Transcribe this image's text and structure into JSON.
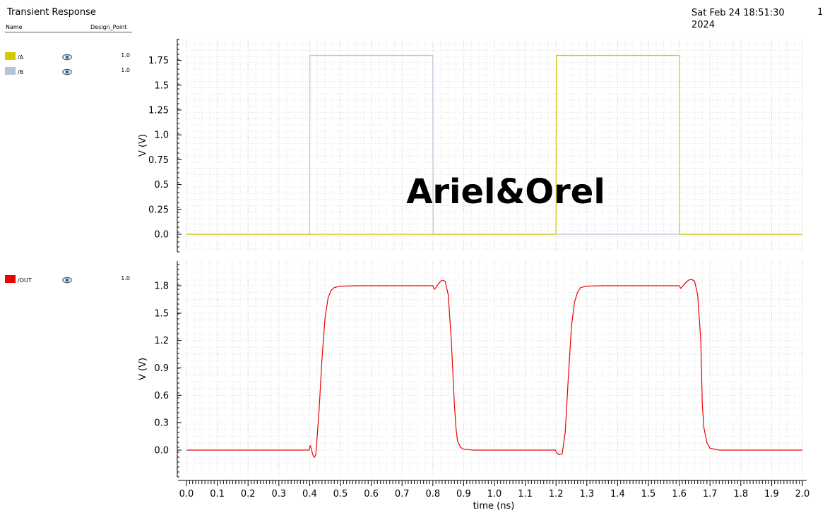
{
  "window": {
    "title": "Transient Response",
    "date_line1": "Sat Feb 24 18:51:30",
    "date_line2": "2024",
    "page_number": "1"
  },
  "legend_header": {
    "name": "Name",
    "design_point": "Design_Point"
  },
  "legend": {
    "top": [
      {
        "name": "/A",
        "color": "#d4c800",
        "design_point": "1.0",
        "icon": "eye-icon"
      },
      {
        "name": "/B",
        "color": "#b4c4dc",
        "design_point": "1.0",
        "icon": "eye-icon"
      }
    ],
    "bottom": [
      {
        "name": "/OUT",
        "color": "#ee0000",
        "design_point": "1.0",
        "icon": "eye-icon"
      }
    ]
  },
  "watermark": "Ariel&Orel",
  "chart_data": [
    {
      "type": "line",
      "ylabel": "V (V)",
      "xlim": [
        0.0,
        2.0
      ],
      "ylim": [
        -0.18,
        1.95
      ],
      "yticks": [
        "0.0",
        "0.25",
        "0.5",
        "0.75",
        "1.0",
        "1.25",
        "1.5",
        "1.75"
      ],
      "grid": true,
      "series": [
        {
          "name": "/B",
          "color": "#b4c4dc",
          "x": [
            0.0,
            0.4,
            0.401,
            0.8,
            0.801,
            2.0
          ],
          "y": [
            0.0,
            0.0,
            1.8,
            1.8,
            0.0,
            0.0
          ]
        },
        {
          "name": "/A",
          "color": "#d4c800",
          "x": [
            0.0,
            1.2,
            1.201,
            1.6,
            1.601,
            2.0
          ],
          "y": [
            0.0,
            0.0,
            1.8,
            1.8,
            0.0,
            0.0
          ]
        }
      ]
    },
    {
      "type": "line",
      "ylabel": "V (V)",
      "xlabel": "time (ns)",
      "xlim": [
        0.0,
        2.0
      ],
      "ylim": [
        -0.18,
        1.95
      ],
      "yticks": [
        "0.0",
        "0.3",
        "0.6",
        "0.9",
        "1.2",
        "1.5",
        "1.8"
      ],
      "xticks": [
        "0.0",
        "0.1",
        "0.2",
        "0.3",
        "0.4",
        "0.5",
        "0.6",
        "0.7",
        "0.8",
        "0.9",
        "1.0",
        "1.1",
        "1.2",
        "1.3",
        "1.4",
        "1.5",
        "1.6",
        "1.7",
        "1.8",
        "1.9",
        "2.0"
      ],
      "grid": true,
      "series": [
        {
          "name": "/OUT",
          "color": "#ee0000",
          "x": [
            0.0,
            0.398,
            0.402,
            0.405,
            0.41,
            0.415,
            0.42,
            0.43,
            0.44,
            0.45,
            0.46,
            0.47,
            0.48,
            0.5,
            0.55,
            0.7,
            0.8,
            0.805,
            0.81,
            0.82,
            0.83,
            0.84,
            0.85,
            0.86,
            0.87,
            0.875,
            0.88,
            0.89,
            0.9,
            0.93,
            1.0,
            1.198,
            1.202,
            1.21,
            1.22,
            1.23,
            1.24,
            1.25,
            1.26,
            1.27,
            1.28,
            1.3,
            1.35,
            1.5,
            1.6,
            1.605,
            1.61,
            1.62,
            1.63,
            1.64,
            1.65,
            1.66,
            1.67,
            1.675,
            1.68,
            1.69,
            1.7,
            1.73,
            2.0
          ],
          "y": [
            0.0,
            0.0,
            0.05,
            0.02,
            -0.05,
            -0.08,
            -0.05,
            0.4,
            1.0,
            1.45,
            1.67,
            1.75,
            1.78,
            1.795,
            1.8,
            1.8,
            1.8,
            1.76,
            1.78,
            1.83,
            1.86,
            1.85,
            1.7,
            1.2,
            0.5,
            0.25,
            0.1,
            0.03,
            0.01,
            0.0,
            0.0,
            0.0,
            -0.03,
            -0.05,
            -0.04,
            0.2,
            0.8,
            1.35,
            1.62,
            1.73,
            1.78,
            1.795,
            1.8,
            1.8,
            1.8,
            1.77,
            1.79,
            1.83,
            1.86,
            1.87,
            1.85,
            1.7,
            1.2,
            0.5,
            0.25,
            0.08,
            0.02,
            0.0,
            0.0
          ]
        }
      ]
    }
  ]
}
